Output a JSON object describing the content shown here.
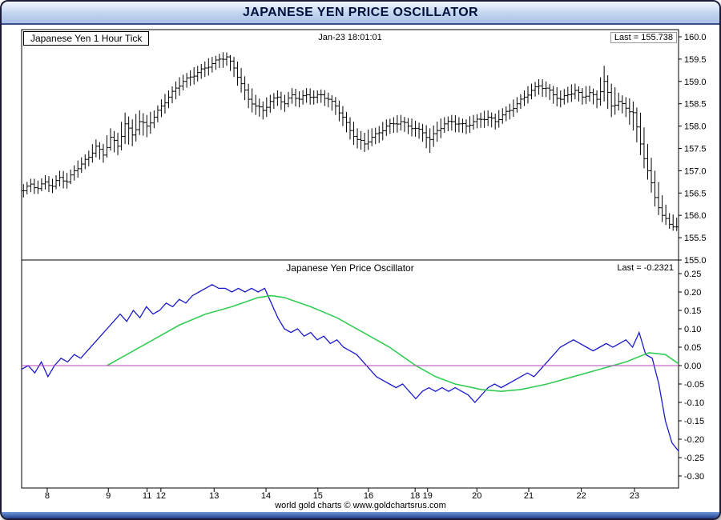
{
  "window": {
    "title": "JAPANESE YEN PRICE OSCILLATOR",
    "footer": "world gold charts © www.goldchartsrus.com"
  },
  "top_panel": {
    "label": "Japanese Yen 1 Hour Tick",
    "timestamp": "Jan-23 18:01:01",
    "last": "Last = 155.738"
  },
  "bottom_panel": {
    "title": "Japanese Yen Price Oscillator",
    "last": "Last = -0.2321"
  },
  "x_axis": {
    "ticks": [
      {
        "label": "8",
        "pos": 0.039
      },
      {
        "label": "9",
        "pos": 0.132
      },
      {
        "label": "11",
        "pos": 0.191
      },
      {
        "label": "12",
        "pos": 0.212
      },
      {
        "label": "13",
        "pos": 0.293
      },
      {
        "label": "14",
        "pos": 0.372
      },
      {
        "label": "15",
        "pos": 0.451
      },
      {
        "label": "16",
        "pos": 0.528
      },
      {
        "label": "18",
        "pos": 0.599
      },
      {
        "label": "19",
        "pos": 0.618
      },
      {
        "label": "20",
        "pos": 0.693
      },
      {
        "label": "21",
        "pos": 0.772
      },
      {
        "label": "22",
        "pos": 0.852
      },
      {
        "label": "23",
        "pos": 0.933
      }
    ]
  },
  "chart_data": [
    {
      "type": "bar",
      "subtype": "ohlc-hlc-bars",
      "title": "Japanese Yen 1 Hour Tick",
      "ylabel": "Price (JPY per USD)",
      "ylim": [
        155.0,
        160.0
      ],
      "yticks": [
        "160.0",
        "159.5",
        "159.0",
        "158.5",
        "158.0",
        "157.5",
        "157.0",
        "156.5",
        "156.0",
        "155.5",
        "155.0"
      ],
      "last": 155.738,
      "bar_color": "#000000",
      "grid": false,
      "bars_hlc": [
        [
          156.7,
          156.4,
          156.55
        ],
        [
          156.82,
          156.52,
          156.7
        ],
        [
          156.78,
          156.48,
          156.6
        ],
        [
          156.9,
          156.58,
          156.75
        ],
        [
          156.82,
          156.5,
          156.65
        ],
        [
          157.0,
          156.65,
          156.85
        ],
        [
          156.95,
          156.6,
          156.75
        ],
        [
          157.12,
          156.78,
          157.0
        ],
        [
          157.3,
          156.95,
          157.15
        ],
        [
          157.45,
          157.1,
          157.3
        ],
        [
          157.7,
          157.3,
          157.55
        ],
        [
          157.6,
          157.18,
          157.35
        ],
        [
          157.95,
          157.45,
          157.75
        ],
        [
          157.85,
          157.35,
          157.55
        ],
        [
          158.3,
          157.6,
          158.05
        ],
        [
          158.15,
          157.55,
          157.8
        ],
        [
          158.35,
          157.8,
          158.1
        ],
        [
          158.25,
          157.75,
          158.0
        ],
        [
          158.35,
          157.95,
          158.2
        ],
        [
          158.6,
          158.2,
          158.45
        ],
        [
          158.8,
          158.4,
          158.65
        ],
        [
          159.0,
          158.6,
          158.85
        ],
        [
          159.15,
          158.8,
          159.0
        ],
        [
          159.25,
          158.9,
          159.1
        ],
        [
          159.35,
          159.0,
          159.2
        ],
        [
          159.45,
          159.1,
          159.3
        ],
        [
          159.55,
          159.2,
          159.4
        ],
        [
          159.62,
          159.3,
          159.5
        ],
        [
          159.65,
          159.35,
          159.55
        ],
        [
          159.55,
          159.1,
          159.3
        ],
        [
          159.3,
          158.75,
          158.95
        ],
        [
          158.95,
          158.4,
          158.6
        ],
        [
          158.7,
          158.25,
          158.45
        ],
        [
          158.55,
          158.15,
          158.35
        ],
        [
          158.7,
          158.3,
          158.55
        ],
        [
          158.8,
          158.45,
          158.65
        ],
        [
          158.7,
          158.32,
          158.5
        ],
        [
          158.85,
          158.5,
          158.7
        ],
        [
          158.78,
          158.42,
          158.6
        ],
        [
          158.85,
          158.52,
          158.7
        ],
        [
          158.8,
          158.48,
          158.65
        ],
        [
          158.82,
          158.52,
          158.7
        ],
        [
          158.75,
          158.42,
          158.6
        ],
        [
          158.65,
          158.25,
          158.45
        ],
        [
          158.45,
          158.0,
          158.2
        ],
        [
          158.2,
          157.7,
          157.9
        ],
        [
          157.95,
          157.5,
          157.7
        ],
        [
          157.85,
          157.42,
          157.6
        ],
        [
          157.95,
          157.55,
          157.75
        ],
        [
          158.0,
          157.62,
          157.85
        ],
        [
          158.15,
          157.78,
          158.0
        ],
        [
          158.2,
          157.85,
          158.05
        ],
        [
          158.25,
          157.9,
          158.1
        ],
        [
          158.18,
          157.82,
          158.0
        ],
        [
          158.12,
          157.76,
          157.95
        ],
        [
          158.05,
          157.65,
          157.85
        ],
        [
          157.95,
          157.4,
          157.7
        ],
        [
          158.1,
          157.65,
          157.9
        ],
        [
          158.2,
          157.85,
          158.05
        ],
        [
          158.25,
          157.9,
          158.1
        ],
        [
          158.2,
          157.86,
          158.05
        ],
        [
          158.15,
          157.82,
          158.0
        ],
        [
          158.25,
          157.92,
          158.1
        ],
        [
          158.3,
          157.96,
          158.15
        ],
        [
          158.35,
          158.0,
          158.2
        ],
        [
          158.28,
          157.92,
          158.1
        ],
        [
          158.4,
          158.05,
          158.25
        ],
        [
          158.5,
          158.15,
          158.35
        ],
        [
          158.65,
          158.3,
          158.5
        ],
        [
          158.8,
          158.45,
          158.65
        ],
        [
          158.95,
          158.6,
          158.8
        ],
        [
          159.05,
          158.7,
          158.9
        ],
        [
          159.0,
          158.65,
          158.85
        ],
        [
          158.9,
          158.5,
          158.7
        ],
        [
          158.8,
          158.42,
          158.6
        ],
        [
          158.88,
          158.52,
          158.7
        ],
        [
          158.95,
          158.6,
          158.8
        ],
        [
          158.85,
          158.48,
          158.65
        ],
        [
          158.9,
          158.55,
          158.75
        ],
        [
          158.8,
          158.4,
          158.6
        ],
        [
          159.35,
          158.55,
          159.0
        ],
        [
          158.95,
          158.2,
          158.45
        ],
        [
          158.75,
          158.35,
          158.55
        ],
        [
          158.65,
          158.2,
          158.4
        ],
        [
          158.55,
          157.9,
          158.3
        ],
        [
          158.3,
          157.35,
          157.6
        ],
        [
          157.6,
          156.8,
          157.0
        ],
        [
          157.0,
          156.2,
          156.4
        ],
        [
          156.45,
          155.85,
          156.0
        ],
        [
          156.05,
          155.7,
          155.8
        ],
        [
          155.95,
          155.65,
          155.74
        ]
      ]
    },
    {
      "type": "line",
      "title": "Japanese Yen Price Oscillator",
      "ylabel": "Oscillator value",
      "ylim": [
        -0.3,
        0.25
      ],
      "yticks": [
        "0.25",
        "0.20",
        "0.15",
        "0.10",
        "0.05",
        "0.00",
        "-0.05",
        "-0.10",
        "-0.15",
        "-0.20",
        "-0.25",
        "-0.30"
      ],
      "last": -0.2321,
      "grid": false,
      "series": [
        {
          "name": "oscillator",
          "color": "#1a1acc",
          "values": [
            -0.01,
            0.0,
            -0.02,
            0.01,
            -0.03,
            0.0,
            0.02,
            0.01,
            0.03,
            0.02,
            0.04,
            0.06,
            0.08,
            0.1,
            0.12,
            0.14,
            0.12,
            0.15,
            0.13,
            0.16,
            0.14,
            0.15,
            0.17,
            0.16,
            0.18,
            0.17,
            0.19,
            0.2,
            0.21,
            0.22,
            0.21,
            0.21,
            0.2,
            0.21,
            0.2,
            0.21,
            0.2,
            0.21,
            0.17,
            0.13,
            0.1,
            0.09,
            0.1,
            0.08,
            0.09,
            0.07,
            0.08,
            0.06,
            0.07,
            0.05,
            0.04,
            0.03,
            0.01,
            -0.01,
            -0.03,
            -0.04,
            -0.05,
            -0.06,
            -0.05,
            -0.07,
            -0.09,
            -0.07,
            -0.06,
            -0.07,
            -0.06,
            -0.07,
            -0.06,
            -0.07,
            -0.08,
            -0.1,
            -0.08,
            -0.06,
            -0.05,
            -0.06,
            -0.05,
            -0.04,
            -0.03,
            -0.02,
            -0.03,
            -0.01,
            0.01,
            0.03,
            0.05,
            0.06,
            0.07,
            0.06,
            0.05,
            0.04,
            0.05,
            0.06,
            0.05,
            0.06,
            0.07,
            0.05,
            0.09,
            0.03,
            0.02,
            -0.05,
            -0.15,
            -0.21,
            -0.2321
          ]
        },
        {
          "name": "signal",
          "color": "#33cc55",
          "points": [
            [
              0.13,
              0.0
            ],
            [
              0.16,
              0.03
            ],
            [
              0.2,
              0.07
            ],
            [
              0.24,
              0.11
            ],
            [
              0.28,
              0.14
            ],
            [
              0.32,
              0.16
            ],
            [
              0.36,
              0.185
            ],
            [
              0.38,
              0.19
            ],
            [
              0.4,
              0.185
            ],
            [
              0.44,
              0.16
            ],
            [
              0.48,
              0.13
            ],
            [
              0.52,
              0.09
            ],
            [
              0.56,
              0.05
            ],
            [
              0.6,
              0.0
            ],
            [
              0.63,
              -0.03
            ],
            [
              0.66,
              -0.05
            ],
            [
              0.7,
              -0.065
            ],
            [
              0.73,
              -0.07
            ],
            [
              0.76,
              -0.065
            ],
            [
              0.8,
              -0.05
            ],
            [
              0.84,
              -0.03
            ],
            [
              0.88,
              -0.01
            ],
            [
              0.92,
              0.01
            ],
            [
              0.955,
              0.035
            ],
            [
              0.98,
              0.03
            ],
            [
              1.0,
              0.005
            ]
          ]
        },
        {
          "name": "zero-line",
          "color": "#bb44bb",
          "value": 0
        }
      ]
    }
  ]
}
